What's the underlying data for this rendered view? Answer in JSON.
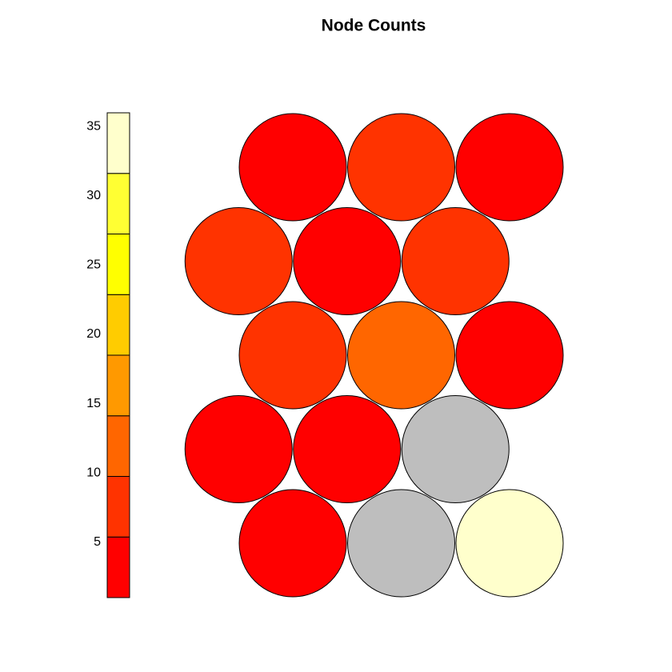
{
  "chart_data": {
    "type": "som-counts",
    "title": "Node Counts",
    "grid": {
      "xdim": 3,
      "ydim": 5,
      "topology": "hexagonal"
    },
    "values": [
      3,
      null,
      36,
      2,
      4,
      null,
      7,
      12,
      3,
      8,
      2,
      6,
      4,
      9,
      1
    ],
    "clim": [
      1,
      36
    ],
    "yticks": [
      5,
      10,
      15,
      20,
      25,
      30,
      35
    ],
    "colors": [
      "#ff0000",
      "#ff3300",
      "#ff6600",
      "#ff9900",
      "#ffcc00",
      "#ffff00",
      "#ffff33",
      "#ffffcc"
    ],
    "empty_color": "#bebebe"
  }
}
